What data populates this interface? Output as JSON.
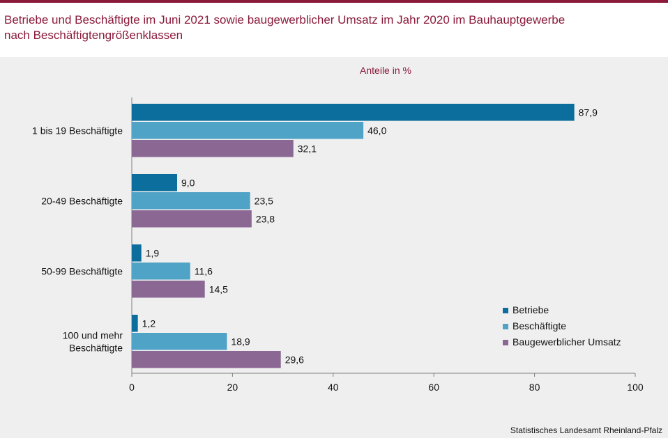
{
  "header": {
    "title_line1": "Betriebe und Beschäftigte im Juni 2021 sowie baugewerblicher Umsatz im Jahr 2020 im Bauhauptgewerbe",
    "title_line2": "nach Beschäftigtengrößenklassen"
  },
  "footer": {
    "source": "Statistisches Landesamt Rheinland-Pfalz"
  },
  "colors": {
    "brand": "#8b1a3a",
    "betriebe": "#0b6e9c",
    "beschaeftigte": "#4fa3c7",
    "umsatz": "#8b6794"
  },
  "chart_data": {
    "type": "bar",
    "orientation": "horizontal",
    "subtitle": "Anteile in %",
    "categories": [
      [
        "1 bis 19 Beschäftigte"
      ],
      [
        "20-49 Beschäftigte"
      ],
      [
        "50-99 Beschäftigte"
      ],
      [
        "100 und mehr",
        "Beschäftigte"
      ]
    ],
    "series": [
      {
        "name": "Betriebe",
        "values": [
          87.9,
          9.0,
          1.9,
          1.2
        ],
        "labels": [
          "87,9",
          "9,0",
          "1,9",
          "1,2"
        ]
      },
      {
        "name": "Beschäftigte",
        "values": [
          46.0,
          23.5,
          11.6,
          18.9
        ],
        "labels": [
          "46,0",
          "23,5",
          "11,6",
          "18,9"
        ]
      },
      {
        "name": "Baugewerblicher Umsatz",
        "values": [
          32.1,
          23.8,
          14.5,
          29.6
        ],
        "labels": [
          "32,1",
          "23,8",
          "14,5",
          "29,6"
        ]
      }
    ],
    "xlim": [
      0,
      100
    ],
    "xticks": [
      0,
      20,
      40,
      60,
      80,
      100
    ],
    "xtick_labels": [
      "0",
      "20",
      "40",
      "60",
      "80",
      "100"
    ],
    "grid": false,
    "legend_position": "bottom-right"
  }
}
